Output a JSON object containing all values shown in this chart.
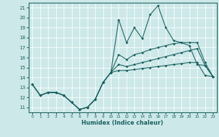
{
  "xlabel": "Humidex (Indice chaleur)",
  "xlim": [
    -0.5,
    23.5
  ],
  "ylim": [
    10.5,
    21.5
  ],
  "xticks": [
    0,
    1,
    2,
    3,
    4,
    5,
    6,
    7,
    8,
    9,
    10,
    11,
    12,
    13,
    14,
    15,
    16,
    17,
    18,
    19,
    20,
    21,
    22,
    23
  ],
  "yticks": [
    11,
    12,
    13,
    14,
    15,
    16,
    17,
    18,
    19,
    20,
    21
  ],
  "bg_color": "#cde8e8",
  "line_color": "#1a6060",
  "grid_color": "#ffffff",
  "line1": [
    13.3,
    12.2,
    12.5,
    12.5,
    12.2,
    11.5,
    10.8,
    11.0,
    11.8,
    13.5,
    14.5,
    14.7,
    14.7,
    14.8,
    14.9,
    15.0,
    15.1,
    15.2,
    15.3,
    15.4,
    15.5,
    15.5,
    14.2,
    14.1
  ],
  "line2": [
    13.3,
    12.2,
    12.5,
    12.5,
    12.2,
    11.5,
    10.8,
    11.0,
    11.8,
    13.5,
    14.5,
    19.8,
    17.5,
    19.0,
    17.9,
    20.3,
    21.2,
    19.0,
    17.7,
    17.5,
    17.2,
    15.3,
    15.2,
    14.1
  ],
  "line3": [
    13.3,
    12.2,
    12.5,
    12.5,
    12.2,
    11.5,
    10.8,
    11.0,
    11.8,
    13.5,
    14.5,
    16.3,
    15.8,
    16.3,
    16.5,
    16.8,
    17.0,
    17.2,
    17.4,
    17.5,
    17.5,
    17.5,
    15.5,
    14.1
  ],
  "line4": [
    13.3,
    12.2,
    12.5,
    12.5,
    12.2,
    11.5,
    10.8,
    11.0,
    11.8,
    13.5,
    14.5,
    15.3,
    15.1,
    15.3,
    15.5,
    15.7,
    15.9,
    16.1,
    16.3,
    16.5,
    16.7,
    16.9,
    15.2,
    14.1
  ]
}
